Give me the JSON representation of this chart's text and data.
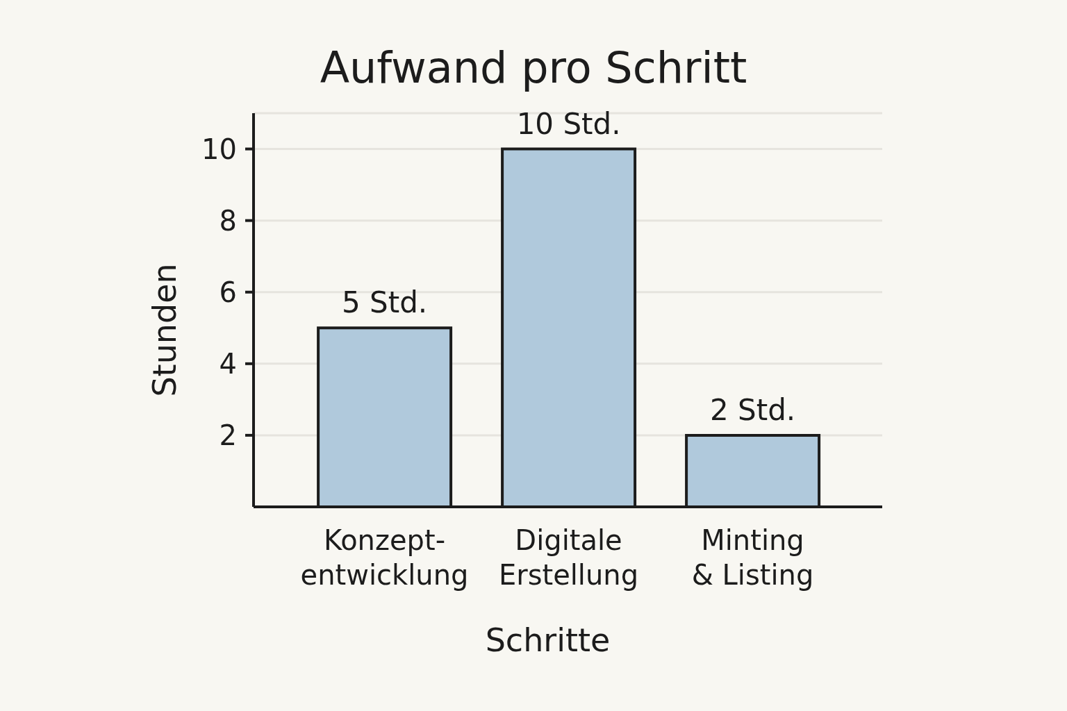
{
  "chart_data": {
    "type": "bar",
    "title": "Aufwand pro Schritt",
    "xlabel": "Schritte",
    "ylabel": "Stunden",
    "categories": [
      "Konzept-\nentwicklung",
      "Digitale\nErstellung",
      "Minting\n& Listing"
    ],
    "values": [
      5,
      10,
      2
    ],
    "value_labels": [
      "5 Std.",
      "10 Std.",
      "2 Std."
    ],
    "color": "#b0c9dc",
    "ylim": [
      0,
      11
    ],
    "yticks": [
      2,
      4,
      6,
      8,
      10
    ],
    "grid": "y"
  }
}
